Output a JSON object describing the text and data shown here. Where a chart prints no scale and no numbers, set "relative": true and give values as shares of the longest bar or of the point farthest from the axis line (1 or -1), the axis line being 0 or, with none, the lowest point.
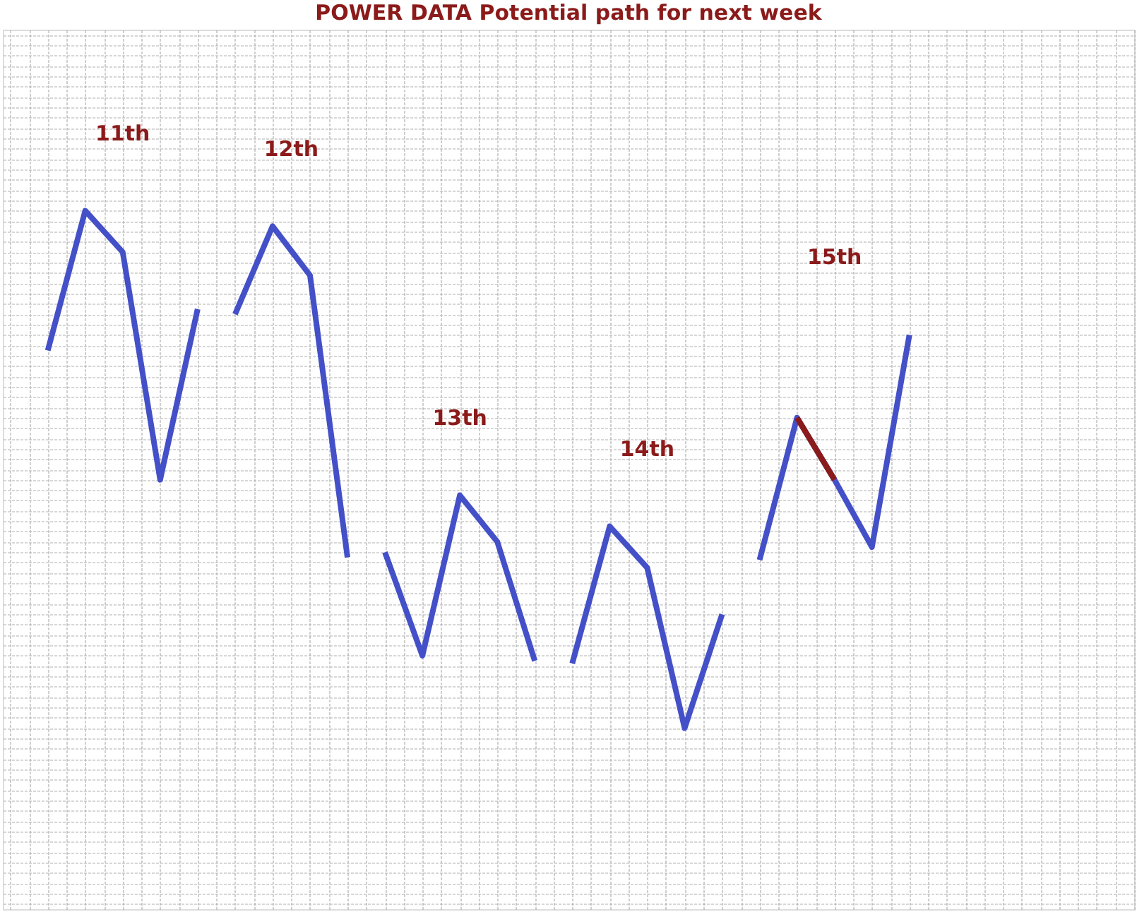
{
  "chart_data": {
    "type": "line",
    "title": "POWER DATA Potential path for next week",
    "relative": true,
    "grid": true,
    "tick_labels": false,
    "marker": "none",
    "line_style": "solid",
    "annotations": [
      "11th",
      "12th",
      "13th",
      "14th",
      "15th"
    ],
    "categories": [
      null,
      null,
      null,
      null,
      null,
      null,
      null,
      null,
      null,
      null,
      null,
      null,
      null,
      null,
      null,
      null,
      null,
      null,
      null,
      null,
      null,
      null,
      null,
      null
    ],
    "series": [
      {
        "color": "#4450c8",
        "values": [
          0.73,
          1.0,
          0.92,
          0.48,
          0.81,
          null,
          null,
          null,
          null,
          null,
          null,
          null,
          null,
          null,
          null,
          null,
          null,
          null,
          null,
          null,
          null,
          null,
          null,
          null
        ]
      },
      {
        "color": "#4450c8",
        "values": [
          null,
          null,
          null,
          null,
          null,
          0.8,
          0.97,
          0.875,
          0.33,
          null,
          null,
          null,
          null,
          null,
          null,
          null,
          null,
          null,
          null,
          null,
          null,
          null,
          null,
          null
        ]
      },
      {
        "color": "#4450c8",
        "values": [
          null,
          null,
          null,
          null,
          null,
          null,
          null,
          null,
          null,
          0.34,
          0.14,
          0.45,
          0.36,
          0.13,
          null,
          null,
          null,
          null,
          null,
          null,
          null,
          null,
          null,
          null
        ]
      },
      {
        "color": "#4450c8",
        "values": [
          null,
          null,
          null,
          null,
          null,
          null,
          null,
          null,
          null,
          null,
          null,
          null,
          null,
          null,
          0.125,
          0.39,
          0.31,
          0.0,
          0.22,
          null,
          null,
          null,
          null,
          null
        ]
      },
      {
        "color": "#4450c8",
        "values": [
          null,
          null,
          null,
          null,
          null,
          null,
          null,
          null,
          null,
          null,
          null,
          null,
          null,
          null,
          null,
          null,
          null,
          null,
          null,
          0.325,
          0.6,
          0.48,
          0.35,
          0.76
        ]
      },
      {
        "color": "#8b1a1a",
        "values": [
          null,
          null,
          null,
          null,
          null,
          null,
          null,
          null,
          null,
          null,
          null,
          null,
          null,
          null,
          null,
          null,
          null,
          null,
          null,
          null,
          0.6,
          0.48,
          null,
          null
        ]
      }
    ]
  }
}
